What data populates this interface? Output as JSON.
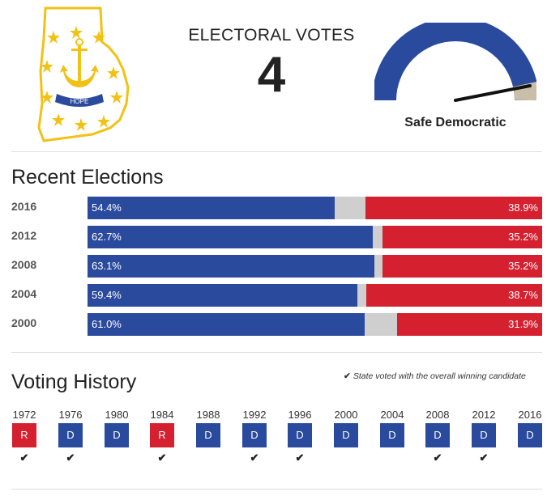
{
  "header": {
    "electoral_label": "ELECTORAL VOTES",
    "electoral_votes": "4",
    "rating": "Safe Democratic",
    "map_flag_text": "HOPE"
  },
  "recent_elections": {
    "title": "Recent Elections",
    "rows": [
      {
        "year": "2016",
        "dem": "54.4%",
        "rep": "38.9%",
        "dem_value": 54.4,
        "rep_value": 38.9
      },
      {
        "year": "2012",
        "dem": "62.7%",
        "rep": "35.2%",
        "dem_value": 62.7,
        "rep_value": 35.2
      },
      {
        "year": "2008",
        "dem": "63.1%",
        "rep": "35.2%",
        "dem_value": 63.1,
        "rep_value": 35.2
      },
      {
        "year": "2004",
        "dem": "59.4%",
        "rep": "38.7%",
        "dem_value": 59.4,
        "rep_value": 38.7
      },
      {
        "year": "2000",
        "dem": "61.0%",
        "rep": "31.9%",
        "dem_value": 61.0,
        "rep_value": 31.9
      }
    ]
  },
  "voting_history": {
    "title": "Voting History",
    "legend": "State voted with the overall winning candidate",
    "items": [
      {
        "year": "1972",
        "party": "R",
        "winner": true
      },
      {
        "year": "1976",
        "party": "D",
        "winner": true
      },
      {
        "year": "1980",
        "party": "D",
        "winner": false
      },
      {
        "year": "1984",
        "party": "R",
        "winner": true
      },
      {
        "year": "1988",
        "party": "D",
        "winner": false
      },
      {
        "year": "1992",
        "party": "D",
        "winner": true
      },
      {
        "year": "1996",
        "party": "D",
        "winner": true
      },
      {
        "year": "2000",
        "party": "D",
        "winner": false
      },
      {
        "year": "2004",
        "party": "D",
        "winner": false
      },
      {
        "year": "2008",
        "party": "D",
        "winner": true
      },
      {
        "year": "2012",
        "party": "D",
        "winner": true
      },
      {
        "year": "2016",
        "party": "D",
        "winner": false
      }
    ]
  },
  "colors": {
    "democrat": "#2a4a9e",
    "republican": "#d4202f",
    "other": "#cfcfcf",
    "gauge_remaining": "#c9bfa8"
  }
}
